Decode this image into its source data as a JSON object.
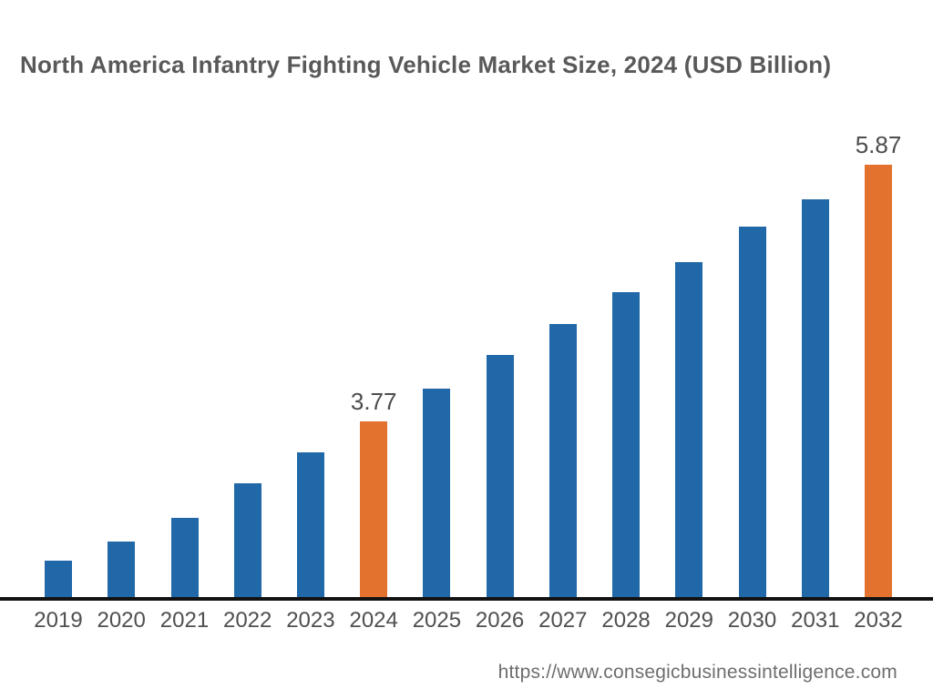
{
  "colors": {
    "bar": "#2068a8",
    "highlight_bar": "#e2722d",
    "axis_line": "#121212",
    "title_text": "#595959",
    "tick_text": "#4f4f4f",
    "value_label_text": "#4d4d4d",
    "footer_text": "#6e6e6e",
    "background": "#ffffff"
  },
  "source_url": "https://www.consegicbusinessintelligence.com",
  "chart_data": {
    "type": "bar",
    "title": "North America Infantry Fighting Vehicle Market Size, 2024 (USD Billion)",
    "unit": "USD Billion",
    "categories": [
      "2019",
      "2020",
      "2021",
      "2022",
      "2023",
      "2024",
      "2025",
      "2026",
      "2027",
      "2028",
      "2029",
      "2030",
      "2031",
      "2032"
    ],
    "values": [
      2.63,
      2.79,
      2.98,
      3.26,
      3.52,
      3.77,
      4.04,
      4.31,
      4.57,
      4.83,
      5.07,
      5.36,
      5.59,
      5.87
    ],
    "values_labeled_on_chart": [
      "2024",
      "2032"
    ],
    "annotations": [
      {
        "category": "2024",
        "text": "3.77"
      },
      {
        "category": "2032",
        "text": "5.87"
      }
    ],
    "highlighted_categories": [
      "2024",
      "2032"
    ],
    "xlabel": "",
    "ylabel": "",
    "legend": false,
    "gridlines": false,
    "y_axis_visible": false,
    "baseline_note": "bars drawn from a truncated (non-zero) baseline"
  }
}
